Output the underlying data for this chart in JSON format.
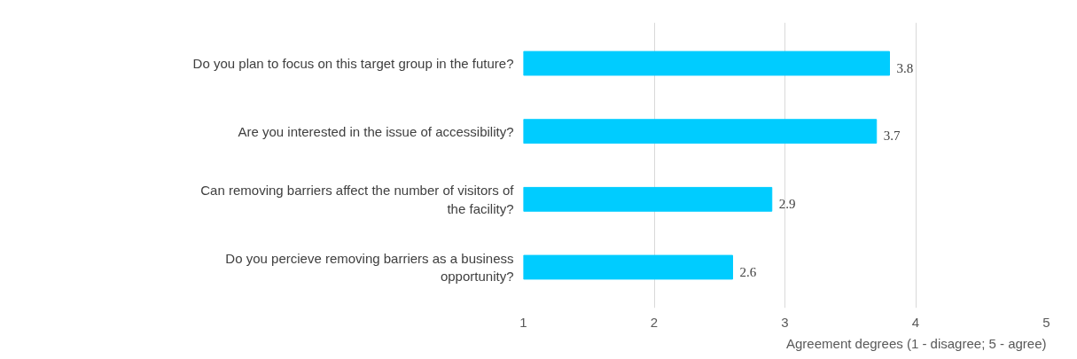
{
  "chart_data": {
    "type": "bar",
    "orientation": "horizontal",
    "xlabel": "Agreement degrees (1 - disagree; 5 - agree)",
    "categories": [
      "Do you plan to focus on this target group in the future?",
      "Are you interested in the issue of accessibility?",
      "Can removing barriers affect the number of visitors of the facility?",
      "Do you percieve removing barriers as a business opportunity?"
    ],
    "values": [
      3.8,
      3.7,
      2.9,
      2.6
    ],
    "color": "#00ccff",
    "xlim": [
      1,
      5
    ],
    "xticks": [
      1,
      2,
      3,
      4,
      5
    ],
    "grid": "x",
    "data_labels": true
  }
}
